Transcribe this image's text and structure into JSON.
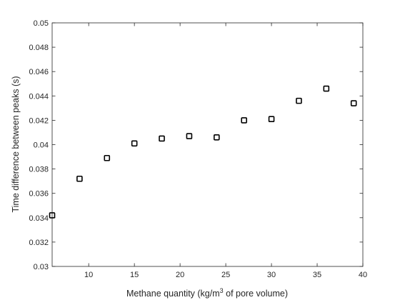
{
  "chart_data": {
    "type": "scatter",
    "title": "",
    "xlabel": "Methane quantity (kg/m",
    "xlabel_sup": "3",
    "xlabel_tail": " of pore volume)",
    "ylabel": "Time difference between peaks (s)",
    "xlim": [
      6,
      40
    ],
    "ylim": [
      0.03,
      0.05
    ],
    "xticks": [
      10,
      15,
      20,
      25,
      30,
      35,
      40
    ],
    "xtick_labels": [
      "10",
      "15",
      "20",
      "25",
      "30",
      "35",
      "40"
    ],
    "yticks": [
      0.03,
      0.032,
      0.034,
      0.036,
      0.038,
      0.04,
      0.042,
      0.044,
      0.046,
      0.048,
      0.05
    ],
    "ytick_labels": [
      "0.03",
      "0.032",
      "0.034",
      "0.036",
      "0.038",
      "0.04",
      "0.042",
      "0.044",
      "0.046",
      "0.048",
      "0.05"
    ],
    "grid": false,
    "marker": "square",
    "marker_color": "#000000",
    "series": [
      {
        "x": [
          6,
          9,
          12,
          15,
          18,
          21,
          24,
          27,
          30,
          33,
          36,
          39
        ],
        "y": [
          0.0342,
          0.0372,
          0.0389,
          0.0401,
          0.0405,
          0.0407,
          0.0406,
          0.042,
          0.0421,
          0.0436,
          0.0446,
          0.0434
        ]
      }
    ]
  }
}
